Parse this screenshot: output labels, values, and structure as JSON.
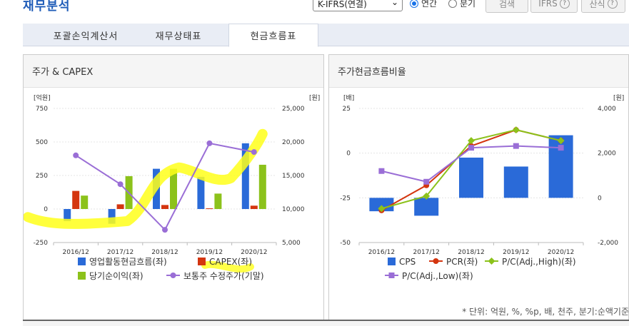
{
  "header": {
    "title": "재무분석",
    "select_value": "K-IFRS(연결)",
    "radio_annual": "연간",
    "radio_quarter": "분기",
    "search_label": "검색",
    "ifrs_label": "IFRS",
    "formula_label": "산식",
    "help_glyph": "?"
  },
  "tabs": [
    {
      "label": "포괄손익계산서",
      "active": false
    },
    {
      "label": "재무상태표",
      "active": false
    },
    {
      "label": "현금흐름표",
      "active": true
    }
  ],
  "panels": {
    "left_title": "주가 & CAPEX",
    "right_title": "주가현금흐름비율"
  },
  "footnote": "* 단위: 억원, %, %p, 배, 천주, 분기:순액기준",
  "colors": {
    "blue": "#2a6ad8",
    "red": "#d4350f",
    "green": "#8cc21b",
    "purple": "#9a6ed6",
    "highlight": "#ffff1a"
  },
  "chart_data": [
    {
      "type": "bar",
      "title": "주가 & CAPEX",
      "categories": [
        "2016/12",
        "2017/12",
        "2018/12",
        "2019/12",
        "2020/12"
      ],
      "left_unit": "[억원]",
      "right_unit": "[원]",
      "left_ticks": [
        "750",
        "500",
        "250",
        "0",
        "-250"
      ],
      "right_ticks": [
        "25,000",
        "20,000",
        "15,000",
        "10,000",
        "5,000"
      ],
      "ylim_left": [
        -250,
        750
      ],
      "ylim_right": [
        5000,
        25000
      ],
      "series": [
        {
          "name": "영업활동현금흐름(좌)",
          "values": [
            -90,
            -110,
            300,
            240,
            490
          ],
          "axis": "left",
          "kind": "bar"
        },
        {
          "name": "CAPEX(좌)",
          "values": [
            135,
            35,
            30,
            5,
            25
          ],
          "axis": "left",
          "kind": "bar"
        },
        {
          "name": "당기순이익(좌)",
          "values": [
            100,
            245,
            300,
            115,
            330
          ],
          "axis": "left",
          "kind": "bar"
        },
        {
          "name": "보통주 수정주가(기말)",
          "values": [
            18000,
            13700,
            6900,
            19800,
            18500
          ],
          "axis": "right",
          "kind": "line"
        }
      ],
      "legend": [
        "영업활동현금흐름(좌)",
        "CAPEX(좌)",
        "당기순이익(좌)",
        "보통주 수정주가(기말)"
      ]
    },
    {
      "type": "bar",
      "title": "주가현금흐름비율",
      "categories": [
        "2016/12",
        "2017/12",
        "2018/12",
        "2019/12",
        "2020/12"
      ],
      "left_unit": "[배]",
      "right_unit": "[원]",
      "left_ticks": [
        "25",
        "0",
        "-25",
        "-50"
      ],
      "right_ticks": [
        "4,000",
        "2,000",
        "0",
        "-2,000"
      ],
      "ylim_left": [
        -50,
        25
      ],
      "ylim_right": [
        -2000,
        4000
      ],
      "series": [
        {
          "name": "CPS",
          "values": [
            -600,
            -800,
            1800,
            1400,
            2800
          ],
          "axis": "right",
          "kind": "bar"
        },
        {
          "name": "PCR(좌)",
          "values": [
            -32,
            -18,
            4,
            13,
            7
          ],
          "axis": "left",
          "kind": "line"
        },
        {
          "name": "P/C(Adj.,High)(좌)",
          "values": [
            -31,
            -24,
            7,
            13,
            7
          ],
          "axis": "left",
          "kind": "line"
        },
        {
          "name": "P/C(Adj.,Low)(좌)",
          "values": [
            -10,
            -16,
            3,
            4,
            3
          ],
          "axis": "left",
          "kind": "line"
        }
      ],
      "legend": [
        "CPS",
        "PCR(좌)",
        "P/C(Adj.,High)(좌)",
        "P/C(Adj.,Low)(좌)"
      ]
    }
  ]
}
